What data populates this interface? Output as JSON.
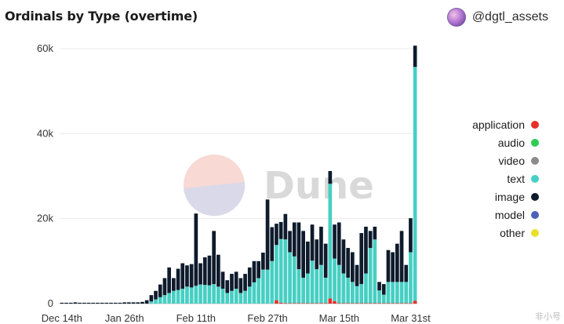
{
  "header": {
    "title": "Ordinals by Type (overtime)",
    "author": "@dgtl_assets"
  },
  "watermark": {
    "text": "Dune"
  },
  "corner_badge": "非小号",
  "colors": {
    "application": "#e8302a",
    "audio": "#2ecc52",
    "video": "#8c8c8c",
    "text": "#47cfc3",
    "image": "#0e1b2c",
    "model": "#4b62b8",
    "other": "#e8e02a"
  },
  "chart_data": {
    "type": "bar",
    "stacked": true,
    "title": "Ordinals by Type (overtime)",
    "xlabel": "",
    "ylabel": "",
    "ylim": [
      0,
      60000
    ],
    "y_ticks": [
      0,
      20000,
      40000,
      60000
    ],
    "y_tick_labels": [
      "0",
      "20k",
      "40k",
      "60k"
    ],
    "x_tick_labels": [
      "Dec 14th",
      "Jan 26th",
      "Feb 11th",
      "Feb 27th",
      "Mar 15th",
      "Mar 31st"
    ],
    "x_tick_indices": [
      0,
      14,
      30,
      46,
      62,
      78
    ],
    "legend": [
      "application",
      "audio",
      "video",
      "text",
      "image",
      "model",
      "other"
    ],
    "legend_position": "right",
    "grid": "horizontal",
    "dates": [
      "Dec 14",
      "Dec 15",
      "Dec 16",
      "Dec 17",
      "Dec 18",
      "Dec 19",
      "Dec 20",
      "Dec 21",
      "Dec 22",
      "Dec 23",
      "Dec 24",
      "Dec 25",
      "Dec 26",
      "Dec 27",
      "Jan 26",
      "Jan 27",
      "Jan 28",
      "Jan 29",
      "Jan 30",
      "Jan 31",
      "Feb 1",
      "Feb 2",
      "Feb 3",
      "Feb 4",
      "Feb 5",
      "Feb 6",
      "Feb 7",
      "Feb 8",
      "Feb 9",
      "Feb 10",
      "Feb 11",
      "Feb 12",
      "Feb 13",
      "Feb 14",
      "Feb 15",
      "Feb 16",
      "Feb 17",
      "Feb 18",
      "Feb 19",
      "Feb 20",
      "Feb 21",
      "Feb 22",
      "Feb 23",
      "Feb 24",
      "Feb 25",
      "Feb 26",
      "Feb 27",
      "Feb 28",
      "Mar 1",
      "Mar 2",
      "Mar 3",
      "Mar 4",
      "Mar 5",
      "Mar 6",
      "Mar 7",
      "Mar 8",
      "Mar 9",
      "Mar 10",
      "Mar 11",
      "Mar 12",
      "Mar 13",
      "Mar 14",
      "Mar 15",
      "Mar 16",
      "Mar 17",
      "Mar 18",
      "Mar 19",
      "Mar 20",
      "Mar 21",
      "Mar 22",
      "Mar 23",
      "Mar 24",
      "Mar 25",
      "Mar 26",
      "Mar 27",
      "Mar 28",
      "Mar 29",
      "Mar 30",
      "Mar 31",
      "Apr 1"
    ],
    "series": [
      {
        "name": "application",
        "values": [
          0,
          0,
          0,
          0,
          0,
          0,
          0,
          0,
          0,
          0,
          0,
          0,
          0,
          0,
          0,
          0,
          0,
          0,
          0,
          0,
          0,
          0,
          0,
          0,
          0,
          0,
          0,
          0,
          0,
          0,
          0,
          0,
          0,
          0,
          0,
          0,
          0,
          0,
          0,
          0,
          0,
          0,
          0,
          0,
          0,
          0,
          0,
          0,
          800,
          200,
          100,
          100,
          100,
          100,
          100,
          100,
          100,
          100,
          100,
          100,
          1200,
          600,
          100,
          100,
          100,
          100,
          100,
          100,
          100,
          100,
          100,
          100,
          100,
          100,
          100,
          100,
          100,
          100,
          100,
          700
        ]
      },
      {
        "name": "audio",
        "values": [
          0,
          0,
          0,
          0,
          0,
          0,
          0,
          0,
          0,
          0,
          0,
          0,
          0,
          0,
          0,
          0,
          0,
          0,
          0,
          0,
          0,
          0,
          0,
          0,
          0,
          0,
          0,
          0,
          0,
          0,
          0,
          0,
          0,
          0,
          0,
          0,
          0,
          0,
          0,
          0,
          0,
          0,
          0,
          0,
          0,
          0,
          0,
          0,
          0,
          0,
          0,
          0,
          0,
          0,
          0,
          0,
          0,
          0,
          0,
          0,
          0,
          0,
          0,
          0,
          0,
          0,
          0,
          0,
          0,
          0,
          0,
          0,
          0,
          0,
          0,
          0,
          0,
          0,
          0,
          0
        ]
      },
      {
        "name": "video",
        "values": [
          0,
          0,
          0,
          0,
          0,
          0,
          0,
          0,
          0,
          0,
          0,
          0,
          0,
          0,
          0,
          0,
          0,
          0,
          0,
          0,
          0,
          0,
          0,
          0,
          0,
          0,
          0,
          0,
          0,
          0,
          0,
          0,
          0,
          0,
          0,
          0,
          0,
          0,
          0,
          0,
          0,
          0,
          0,
          0,
          0,
          0,
          0,
          0,
          0,
          0,
          0,
          0,
          0,
          0,
          0,
          0,
          0,
          0,
          0,
          0,
          0,
          0,
          0,
          0,
          0,
          0,
          0,
          0,
          0,
          0,
          0,
          0,
          0,
          0,
          0,
          0,
          0,
          0,
          0,
          0
        ]
      },
      {
        "name": "text",
        "values": [
          0,
          0,
          0,
          0,
          0,
          0,
          0,
          0,
          0,
          0,
          0,
          0,
          0,
          0,
          0,
          0,
          0,
          0,
          0,
          0,
          500,
          1000,
          1500,
          2000,
          2500,
          3000,
          3200,
          3500,
          4000,
          3800,
          4200,
          4500,
          4400,
          4300,
          4600,
          4000,
          3500,
          2500,
          3000,
          3500,
          2500,
          3000,
          4000,
          5000,
          6000,
          8000,
          8000,
          10000,
          13000,
          15000,
          15000,
          12000,
          11000,
          8000,
          6000,
          7000,
          10000,
          8000,
          9000,
          6000,
          27000,
          10000,
          9000,
          7000,
          6000,
          5000,
          4000,
          4500,
          7000,
          13000,
          15000,
          3000,
          2000,
          5000,
          5000,
          5000,
          5000,
          5000,
          12000,
          55000
        ]
      },
      {
        "name": "image",
        "values": [
          200,
          200,
          200,
          300,
          200,
          200,
          200,
          200,
          200,
          200,
          200,
          200,
          200,
          200,
          300,
          300,
          300,
          300,
          400,
          800,
          1500,
          2000,
          3000,
          4000,
          6000,
          3000,
          5000,
          6000,
          5000,
          5500,
          17000,
          5000,
          6500,
          7000,
          12500,
          7500,
          4000,
          3000,
          4000,
          4000,
          3500,
          4000,
          4500,
          5000,
          4000,
          4000,
          16500,
          8000,
          5000,
          4000,
          6000,
          5000,
          8000,
          11000,
          11000,
          7500,
          8500,
          7000,
          9000,
          8000,
          3000,
          8000,
          10000,
          8000,
          7000,
          7000,
          5000,
          12000,
          11000,
          4000,
          3000,
          2000,
          2500,
          7500,
          7000,
          9000,
          12000,
          4000,
          8000,
          5000
        ]
      },
      {
        "name": "model",
        "values": [
          0,
          0,
          0,
          0,
          0,
          0,
          0,
          0,
          0,
          0,
          0,
          0,
          0,
          0,
          0,
          0,
          0,
          0,
          0,
          0,
          0,
          0,
          0,
          0,
          0,
          0,
          0,
          0,
          0,
          0,
          0,
          0,
          0,
          0,
          0,
          0,
          0,
          0,
          0,
          0,
          0,
          0,
          0,
          0,
          0,
          0,
          0,
          0,
          0,
          0,
          0,
          0,
          0,
          0,
          0,
          0,
          0,
          0,
          0,
          0,
          0,
          0,
          0,
          0,
          0,
          0,
          0,
          0,
          0,
          0,
          0,
          0,
          0,
          0,
          0,
          0,
          0,
          0,
          0,
          0
        ]
      },
      {
        "name": "other",
        "values": [
          0,
          0,
          0,
          0,
          0,
          0,
          0,
          0,
          0,
          0,
          0,
          0,
          0,
          0,
          0,
          0,
          0,
          0,
          0,
          0,
          0,
          0,
          0,
          0,
          0,
          0,
          0,
          0,
          0,
          0,
          0,
          0,
          0,
          0,
          0,
          0,
          0,
          0,
          0,
          0,
          0,
          0,
          0,
          0,
          0,
          0,
          0,
          0,
          0,
          0,
          0,
          0,
          0,
          0,
          0,
          0,
          0,
          0,
          0,
          0,
          0,
          0,
          0,
          0,
          0,
          0,
          0,
          0,
          0,
          0,
          0,
          0,
          0,
          0,
          0,
          0,
          0,
          0,
          0,
          0
        ]
      }
    ]
  }
}
